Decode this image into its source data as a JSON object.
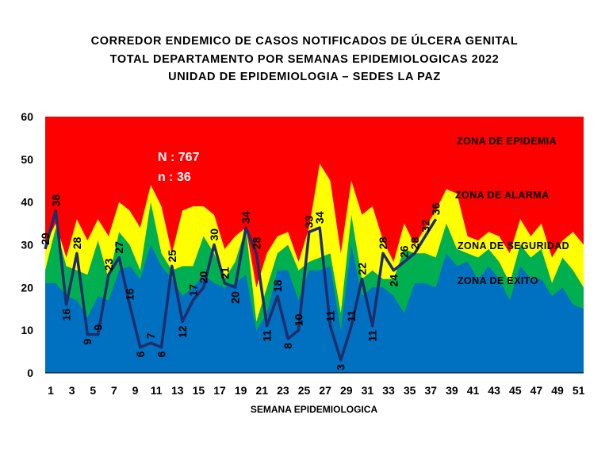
{
  "title_lines": [
    "CORREDOR  ENDEMICO  DE CASOS NOTIFICADOS  DE ÚLCERA GENITAL",
    "TOTAL DEPARTAMENTO  POR SEMANAS EPIDEMIOLOGICAS  2022",
    "UNIDAD  DE EPIDEMIOLOGIA  – SEDES LA PAZ"
  ],
  "chart_data": {
    "type": "area",
    "xlabel": "SEMANA EPIDEMIOLOGICA",
    "ylabel": "",
    "ylim": [
      0,
      60
    ],
    "yticks": [
      0,
      10,
      20,
      30,
      40,
      50,
      60
    ],
    "xticks": [
      1,
      3,
      5,
      7,
      9,
      11,
      13,
      15,
      17,
      19,
      21,
      23,
      25,
      27,
      29,
      31,
      33,
      35,
      37,
      39,
      41,
      43,
      45,
      47,
      49,
      51
    ],
    "x_range": [
      1,
      52
    ],
    "annotations": {
      "total": "N : 767",
      "n": "n : 36"
    },
    "zones": [
      {
        "name": "ZONA DE EPIDEMIA",
        "color": "#ff0000",
        "top": 60
      },
      {
        "name": "ZONA DE ALARMA",
        "color": "#ffff00",
        "values": [
          30,
          35,
          27,
          36,
          31,
          36,
          32,
          40,
          38,
          34,
          44,
          39,
          28,
          38,
          39,
          39,
          37,
          29,
          32,
          34,
          20,
          28,
          32,
          33,
          26,
          34,
          49,
          45,
          28,
          45,
          37,
          39,
          31,
          26,
          35,
          30,
          34,
          38,
          43,
          42,
          32,
          31,
          33,
          32,
          28,
          36,
          32,
          35,
          27,
          31,
          33,
          30
        ]
      },
      {
        "name": "ZONA DE  SEGURIDAD",
        "color": "#00b050",
        "values": [
          24,
          34,
          25,
          24,
          23,
          31,
          22,
          33,
          30,
          24,
          40,
          28,
          24,
          25,
          25,
          32,
          28,
          22,
          26,
          34,
          12,
          20,
          28,
          30,
          24,
          26,
          27,
          28,
          14,
          37,
          22,
          24,
          22,
          22,
          29,
          28,
          28,
          27,
          35,
          29,
          28,
          27,
          29,
          26,
          21,
          30,
          27,
          29,
          21,
          27,
          24,
          20
        ]
      },
      {
        "name": "ZONA DE  EXITO",
        "color": "#0070c0",
        "values": [
          21,
          21,
          18,
          17,
          13,
          18,
          17,
          24,
          25,
          22,
          30,
          25,
          22,
          18,
          20,
          23,
          21,
          20,
          21,
          23,
          10,
          14,
          24,
          24,
          17,
          24,
          24,
          25,
          10,
          30,
          18,
          20,
          20,
          18,
          14,
          21,
          21,
          20,
          28,
          25,
          26,
          22,
          25,
          22,
          17,
          25,
          22,
          22,
          18,
          20,
          16,
          15
        ]
      }
    ],
    "series": [
      {
        "color": "#1f2d6b",
        "x": [
          1,
          2,
          3,
          4,
          5,
          6,
          7,
          8,
          9,
          10,
          11,
          12,
          13,
          14,
          15,
          16,
          17,
          18,
          19,
          20,
          21,
          22,
          23,
          24,
          25,
          26,
          27,
          28,
          29,
          30,
          31,
          32,
          33,
          34,
          35,
          36,
          37,
          38
        ],
        "values": [
          29,
          38,
          16,
          28,
          9,
          9,
          23,
          27,
          16,
          6,
          7,
          6,
          25,
          12,
          17,
          20,
          30,
          21,
          20,
          34,
          28,
          11,
          18,
          8,
          10,
          33,
          34,
          11,
          3,
          11,
          22,
          11,
          28,
          24,
          26,
          28,
          32,
          36
        ],
        "label_values": [
          29,
          38,
          16,
          28,
          9,
          9,
          23,
          27,
          16,
          6,
          7,
          6,
          25,
          12,
          17,
          20,
          30,
          21,
          20,
          34,
          28,
          11,
          18,
          8,
          10,
          33,
          34,
          11,
          3,
          11,
          22,
          11,
          28,
          24,
          26,
          28,
          32,
          36
        ]
      }
    ]
  }
}
